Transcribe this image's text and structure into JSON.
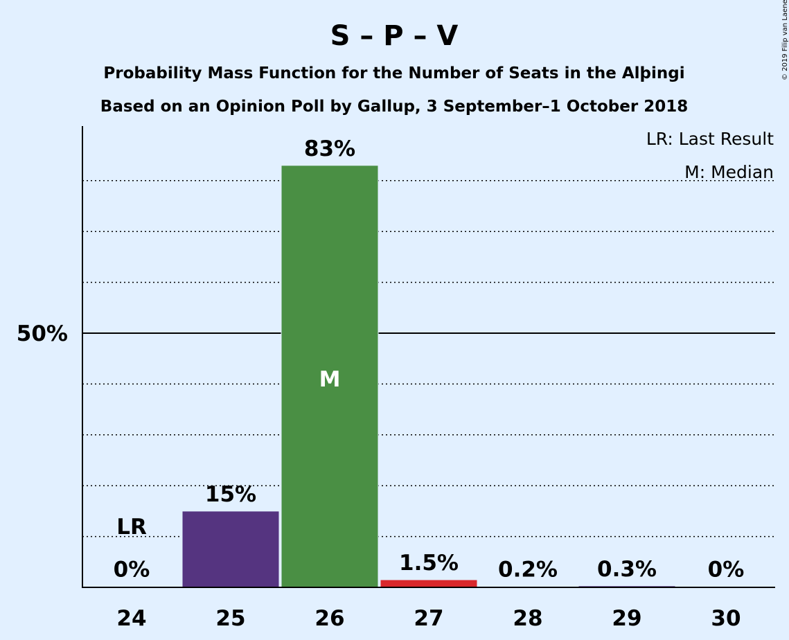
{
  "chart_data": {
    "type": "bar",
    "title": "S – P – V",
    "subtitle": "Probability Mass Function for the Number of Seats in the Alþingi",
    "subtitle2": "Based on an Opinion Poll by Gallup, 3 September–1 October 2018",
    "categories": [
      "24",
      "25",
      "26",
      "27",
      "28",
      "29",
      "30"
    ],
    "values": [
      0,
      15,
      83,
      1.5,
      0.2,
      0.3,
      0
    ],
    "value_labels": [
      "0%",
      "15%",
      "83%",
      "1.5%",
      "0.2%",
      "0.3%",
      "0%"
    ],
    "bar_colors": [
      "#553480",
      "#553480",
      "#4a8f44",
      "#d9282b",
      "#553480",
      "#553480",
      "#553480"
    ],
    "ylim": [
      0,
      90
    ],
    "ytick_label": "50%",
    "ytick_value": 50,
    "gridlines": [
      10,
      20,
      30,
      40,
      60,
      70,
      80
    ],
    "last_result_category": "24",
    "last_result_marker": "LR",
    "median_category": "26",
    "median_marker": "M",
    "legend": [
      "LR: Last Result",
      "M: Median"
    ],
    "legend_position": "top-right",
    "copyright": "© 2019 Filip van Laenen"
  }
}
